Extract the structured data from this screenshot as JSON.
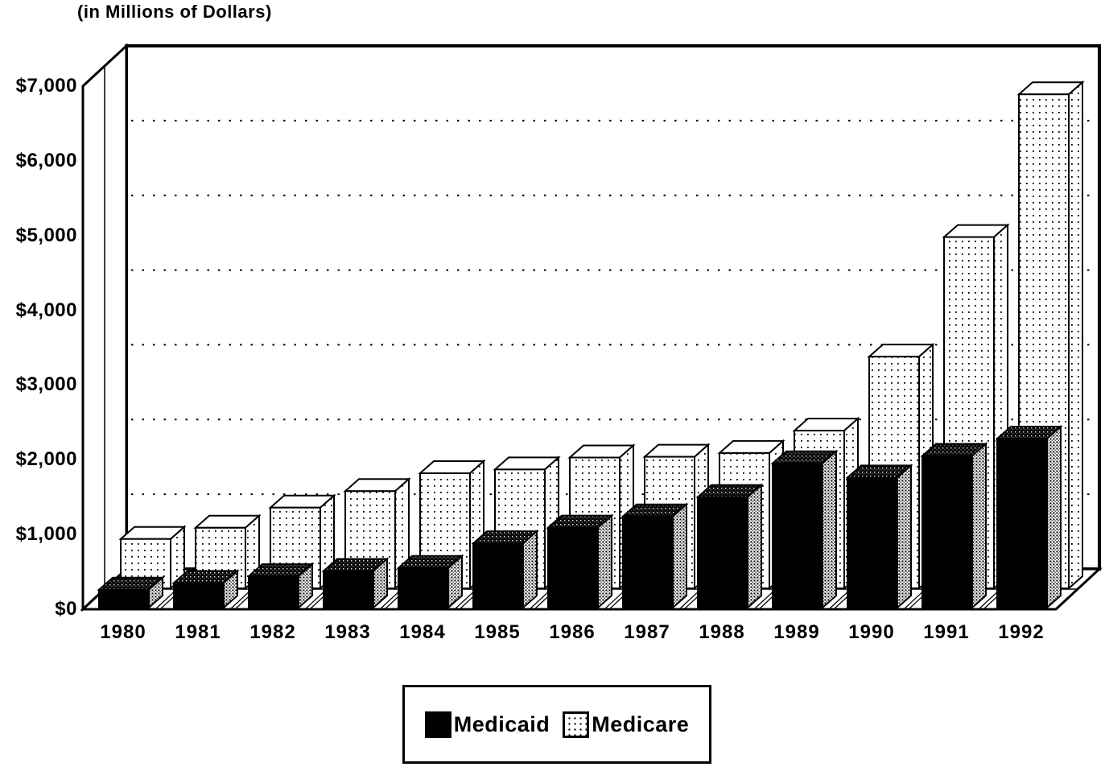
{
  "title": "(in Millions of Dollars)",
  "chart_data": {
    "type": "bar",
    "style": "3d-column, monochrome scanned print",
    "title": "(in Millions of Dollars)",
    "categories": [
      "1980",
      "1981",
      "1982",
      "1983",
      "1984",
      "1985",
      "1986",
      "1987",
      "1988",
      "1989",
      "1990",
      "1991",
      "1992"
    ],
    "series": [
      {
        "name": "Medicaid",
        "swatch": "solid-black",
        "values": [
          240,
          330,
          420,
          490,
          530,
          860,
          1070,
          1220,
          1480,
          1930,
          1740,
          2030,
          2260
        ]
      },
      {
        "name": "Medicare",
        "swatch": "white-dotted",
        "values": [
          660,
          810,
          1080,
          1300,
          1540,
          1590,
          1750,
          1760,
          1810,
          2110,
          3100,
          4700,
          6610
        ]
      }
    ],
    "xlabel": "",
    "ylabel": "(in Millions of Dollars)",
    "ylim": [
      0,
      7000
    ],
    "ytick_step": 1000,
    "ytick_labels": [
      "$0",
      "$1,000",
      "$2,000",
      "$3,000",
      "$4,000",
      "$5,000",
      "$6,000",
      "$7,000"
    ],
    "grid": "dotted horizontal gridlines on back wall",
    "legend_position": "bottom-center"
  },
  "legend": {
    "items": [
      {
        "label": "Medicaid",
        "swatch": "black-square"
      },
      {
        "label": "Medicare",
        "swatch": "dotted-square"
      }
    ]
  },
  "colors": {
    "ink": "#000000",
    "paper": "#ffffff"
  }
}
